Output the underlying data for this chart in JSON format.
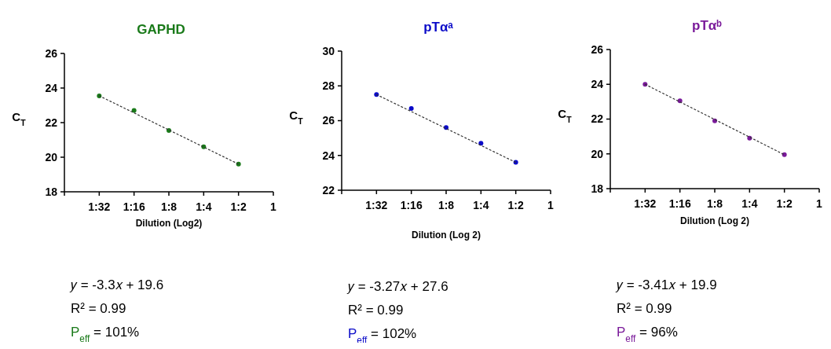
{
  "chart_data": [
    {
      "type": "scatter",
      "title": "GAPHD",
      "xlabel": "Dilution (Log2)",
      "ylabel": "C$_{T}$",
      "categories": [
        "1:32",
        "1:16",
        "1:8",
        "1:4",
        "1:2",
        "1"
      ],
      "ylim": [
        18,
        26
      ],
      "yticks": [
        18,
        20,
        22,
        24,
        26
      ],
      "grid": false,
      "series": [
        {
          "color": "#1a7a1a",
          "marker": "circle",
          "values": [
            23.55,
            22.7,
            21.55,
            20.6,
            19.6,
            null
          ]
        },
        {
          "type": "line",
          "color": "#333333",
          "line_style": "dotted",
          "marker": "none",
          "x": [
            "1:32",
            "1:2"
          ],
          "values": [
            23.55,
            19.6
          ]
        }
      ],
      "annotations": [
        "𝑦 = -3.3𝑥 + 19.6",
        "R² = 0.99",
        "P$_{eff}$ = 101%"
      ]
    },
    {
      "type": "scatter",
      "title": "pTαᵃ",
      "xlabel": "Dilution (Log 2)",
      "ylabel": "C$_{T}$",
      "categories": [
        "1:32",
        "1:16",
        "1:8",
        "1:4",
        "1:2",
        "1"
      ],
      "ylim": [
        22,
        30
      ],
      "yticks": [
        22,
        24,
        26,
        28,
        30
      ],
      "grid": false,
      "series": [
        {
          "color": "#0a0ac8",
          "marker": "circle",
          "values": [
            27.5,
            26.7,
            25.6,
            24.7,
            23.6,
            null
          ]
        },
        {
          "type": "line",
          "color": "#333333",
          "line_style": "dotted",
          "marker": "none",
          "x": [
            "1:32",
            "1:2"
          ],
          "values": [
            27.5,
            23.6
          ]
        }
      ],
      "annotations": [
        "𝑦 = -3.27𝑥 + 27.6",
        "R² = 0.99",
        "P$_{eff}$ = 102%"
      ]
    },
    {
      "type": "scatter",
      "title": "pTαᵇ",
      "xlabel": "Dilution (Log 2)",
      "ylabel": "C$_{T}$",
      "categories": [
        "1:32",
        "1:16",
        "1:8",
        "1:4",
        "1:2",
        "1"
      ],
      "ylim": [
        18,
        26
      ],
      "yticks": [
        18,
        20,
        22,
        24,
        26
      ],
      "grid": false,
      "series": [
        {
          "color": "#7a1a9a",
          "marker": "circle",
          "values": [
            24.0,
            23.05,
            21.9,
            20.9,
            19.95,
            null
          ]
        },
        {
          "type": "line",
          "color": "#333333",
          "line_style": "dotted",
          "marker": "none",
          "x": [
            "1:32",
            "1:2"
          ],
          "values": [
            24.0,
            19.95
          ]
        }
      ],
      "annotations": [
        "𝑦 = -3.41𝑥 + 19.9",
        "R² = 0.99",
        "P$_{eff}$ = 96%"
      ]
    }
  ]
}
